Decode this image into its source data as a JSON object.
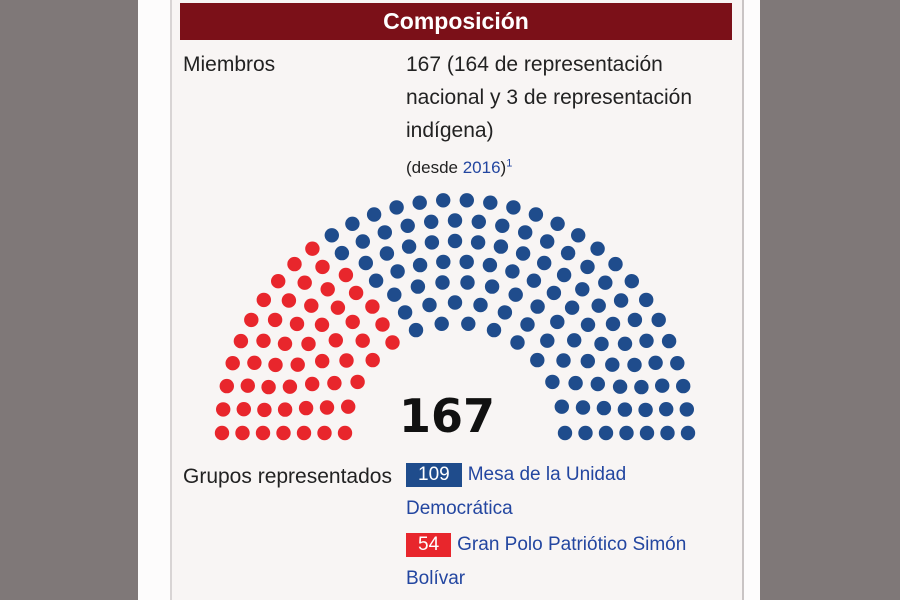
{
  "header": {
    "title": "Composición"
  },
  "members": {
    "label": "Miembros",
    "value": "167 (164 de representación nacional y 3 de representación indígena)",
    "since_prefix": "(desde ",
    "since_year": "2016",
    "since_suffix": ")",
    "footnote": "1"
  },
  "chart_data": {
    "type": "parliament",
    "total": 167,
    "total_label": "167",
    "series": [
      {
        "name": "Gran Polo Patriótico Simón Bolívar",
        "seats": 54,
        "color": "#e8262c"
      },
      {
        "name": "Mesa de la Unidad Democrática",
        "seats": 109,
        "color": "#1f4c8c"
      }
    ]
  },
  "groups": {
    "label": "Grupos representados",
    "parties": [
      {
        "seats": "109",
        "name": "Mesa de la Unidad Democrática",
        "color": "#1f4c8c"
      },
      {
        "seats": "54",
        "name": "Gran Polo Patriótico Simón Bolívar",
        "color": "#e8262c"
      }
    ]
  }
}
